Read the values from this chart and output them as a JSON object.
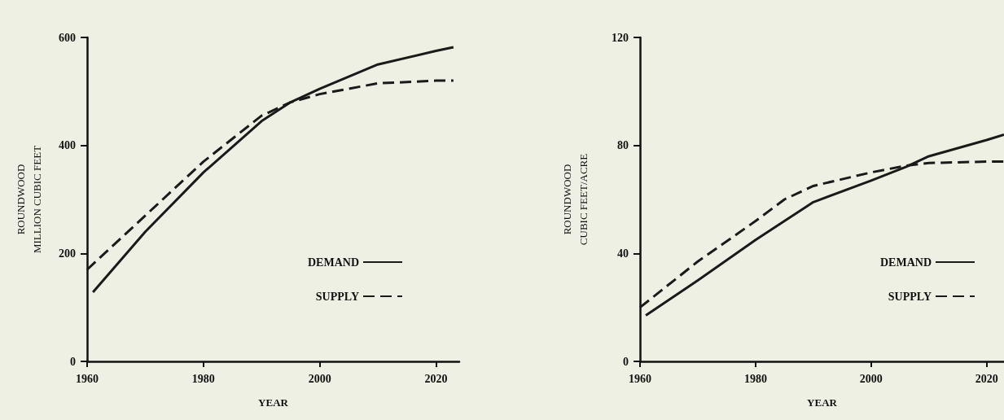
{
  "chart_data": [
    {
      "type": "line",
      "xlabel": "YEAR",
      "ylabel": "ROUNDWOOD\nMILLION CUBIC FEET",
      "xlim": [
        1960,
        2024
      ],
      "xticks": [
        1960,
        1980,
        2000,
        2020
      ],
      "ylim": [
        0,
        600
      ],
      "yticks": [
        0,
        200,
        400,
        600
      ],
      "grid": false,
      "legend": "bottom right",
      "marker": "none",
      "series": [
        {
          "name": "DEMAND",
          "color": "#1a1a1a",
          "line_style": "solid",
          "x": [
            1961,
            1970,
            1980,
            1990,
            1995,
            2000,
            2010,
            2020,
            2023
          ],
          "values": [
            128,
            240,
            350,
            445,
            480,
            505,
            550,
            575,
            582
          ]
        },
        {
          "name": "SUPPLY",
          "color": "#1a1a1a",
          "line_style": "dashed",
          "x": [
            1960,
            1970,
            1980,
            1990,
            1995,
            2000,
            2010,
            2020,
            2023
          ],
          "values": [
            170,
            270,
            370,
            455,
            480,
            495,
            515,
            520,
            520
          ]
        }
      ]
    },
    {
      "type": "line",
      "xlabel": "YEAR",
      "ylabel": "ROUNDWOOD\nCUBIC FEET/ACRE",
      "xlim": [
        1960,
        2023
      ],
      "xticks": [
        1960,
        1980,
        2000,
        2020
      ],
      "ylim": [
        0,
        120
      ],
      "yticks": [
        0,
        40,
        80,
        120
      ],
      "grid": false,
      "legend": "bottom right",
      "marker": "none",
      "series": [
        {
          "name": "DEMAND",
          "color": "#1a1a1a",
          "line_style": "solid",
          "x": [
            1961,
            1970,
            1980,
            1985,
            1990,
            2000,
            2006,
            2010,
            2020,
            2023
          ],
          "values": [
            17,
            30,
            45,
            52,
            59,
            67,
            72,
            76,
            82,
            84
          ]
        },
        {
          "name": "SUPPLY",
          "color": "#1a1a1a",
          "line_style": "dashed",
          "x": [
            1960,
            1970,
            1980,
            1985,
            1990,
            2000,
            2006,
            2010,
            2020,
            2023
          ],
          "values": [
            20,
            37,
            52,
            60,
            65,
            70,
            72.5,
            73.5,
            74,
            74
          ]
        }
      ]
    }
  ]
}
